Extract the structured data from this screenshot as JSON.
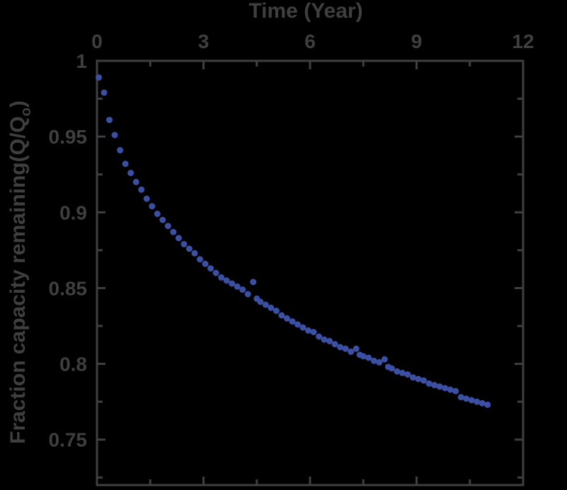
{
  "chart_data": {
    "type": "scatter",
    "xlabel": "Time (Year)",
    "ylabel": "Fraction capacity remaining(Q/Q",
    "ylabel_subscript": "o",
    "ylabel_suffix": ")",
    "xlim": [
      0,
      12
    ],
    "ylim": [
      0.72,
      1.0
    ],
    "xticks": [
      0,
      3,
      6,
      9,
      12
    ],
    "xtick_labels": [
      "0",
      "3",
      "6",
      "9",
      "12"
    ],
    "yticks": [
      0.75,
      0.8,
      0.85,
      0.9,
      0.95,
      1.0
    ],
    "ytick_labels": [
      "0.75",
      "0.8",
      "0.85",
      "0.9",
      "0.95",
      "1"
    ],
    "x_axis_position": "top",
    "grid": false,
    "marker_color": "#3b4fa3",
    "axis_color": "#3f3f3f",
    "background_color": "#000000",
    "x": [
      0.05,
      0.2,
      0.35,
      0.5,
      0.65,
      0.8,
      0.95,
      1.1,
      1.25,
      1.4,
      1.55,
      1.7,
      1.85,
      2.0,
      2.15,
      2.3,
      2.45,
      2.6,
      2.75,
      2.9,
      3.05,
      3.2,
      3.35,
      3.5,
      3.65,
      3.8,
      3.95,
      4.1,
      4.25,
      4.4,
      4.5,
      4.6,
      4.75,
      4.9,
      5.05,
      5.2,
      5.35,
      5.5,
      5.65,
      5.8,
      5.95,
      6.1,
      6.25,
      6.4,
      6.55,
      6.7,
      6.85,
      7.0,
      7.15,
      7.3,
      7.4,
      7.5,
      7.65,
      7.8,
      7.95,
      8.1,
      8.2,
      8.3,
      8.45,
      8.6,
      8.75,
      8.9,
      9.05,
      9.2,
      9.35,
      9.5,
      9.65,
      9.8,
      9.95,
      10.1,
      10.25,
      10.4,
      10.55,
      10.7,
      10.85,
      11.0
    ],
    "y": [
      0.989,
      0.979,
      0.961,
      0.951,
      0.941,
      0.932,
      0.926,
      0.92,
      0.915,
      0.909,
      0.904,
      0.899,
      0.895,
      0.891,
      0.887,
      0.883,
      0.879,
      0.876,
      0.873,
      0.869,
      0.866,
      0.863,
      0.86,
      0.857,
      0.855,
      0.853,
      0.851,
      0.849,
      0.846,
      0.854,
      0.843,
      0.841,
      0.839,
      0.837,
      0.835,
      0.832,
      0.83,
      0.828,
      0.826,
      0.824,
      0.822,
      0.821,
      0.818,
      0.816,
      0.815,
      0.813,
      0.811,
      0.81,
      0.808,
      0.81,
      0.806,
      0.805,
      0.804,
      0.802,
      0.801,
      0.803,
      0.798,
      0.797,
      0.795,
      0.794,
      0.793,
      0.791,
      0.79,
      0.789,
      0.787,
      0.786,
      0.785,
      0.784,
      0.783,
      0.782,
      0.778,
      0.777,
      0.776,
      0.775,
      0.774,
      0.773
    ]
  }
}
